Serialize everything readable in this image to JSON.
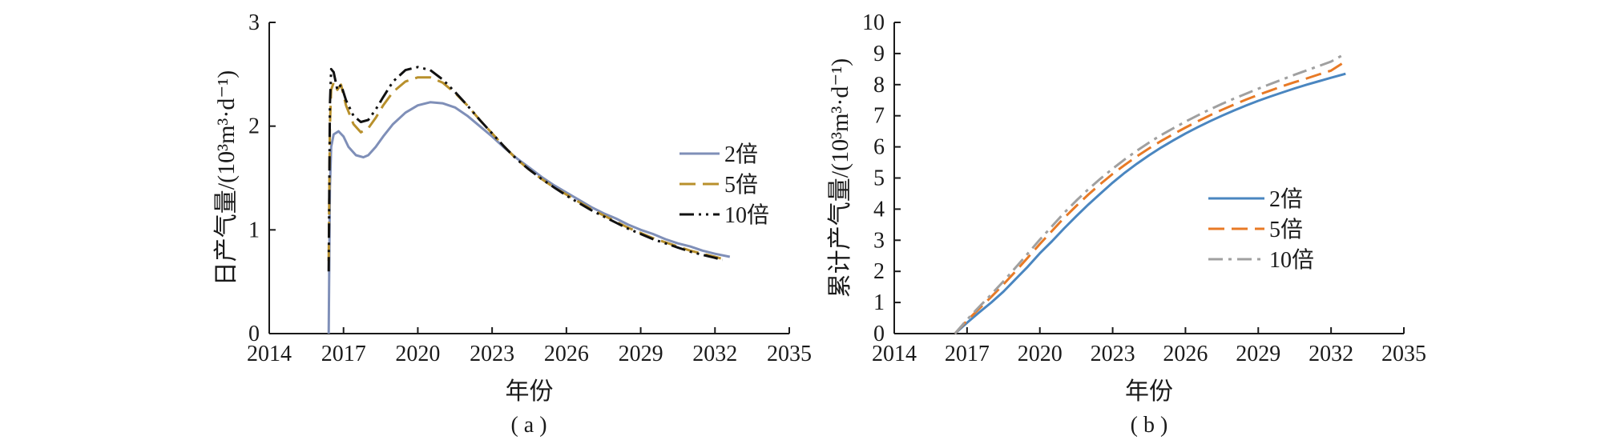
{
  "chart_data": [
    {
      "type": "line",
      "panel_label": "( a )",
      "xlabel": "年份",
      "ylabel": "日产气量/(10³m³·d⁻¹)",
      "xlim": [
        2014,
        2035
      ],
      "ylim": [
        0,
        3
      ],
      "xticks": [
        2014,
        2017,
        2020,
        2023,
        2026,
        2029,
        2032,
        2035
      ],
      "yticks": [
        0,
        1,
        2,
        3
      ],
      "grid": false,
      "legend_position": "right",
      "series": [
        {
          "name": "2倍",
          "color": "#7f8fb8",
          "dash": "solid",
          "points": [
            [
              2016.4,
              0
            ],
            [
              2016.45,
              1.4
            ],
            [
              2016.5,
              1.8
            ],
            [
              2016.6,
              1.92
            ],
            [
              2016.8,
              1.95
            ],
            [
              2017.0,
              1.9
            ],
            [
              2017.2,
              1.8
            ],
            [
              2017.5,
              1.72
            ],
            [
              2017.8,
              1.7
            ],
            [
              2018.0,
              1.72
            ],
            [
              2018.3,
              1.8
            ],
            [
              2018.6,
              1.9
            ],
            [
              2019.0,
              2.02
            ],
            [
              2019.5,
              2.13
            ],
            [
              2020.0,
              2.2
            ],
            [
              2020.5,
              2.23
            ],
            [
              2021.0,
              2.22
            ],
            [
              2021.5,
              2.18
            ],
            [
              2022.0,
              2.1
            ],
            [
              2022.5,
              2.0
            ],
            [
              2023.0,
              1.9
            ],
            [
              2023.5,
              1.79
            ],
            [
              2024.0,
              1.69
            ],
            [
              2024.5,
              1.6
            ],
            [
              2025.0,
              1.51
            ],
            [
              2025.5,
              1.43
            ],
            [
              2026.0,
              1.36
            ],
            [
              2026.5,
              1.29
            ],
            [
              2027.0,
              1.22
            ],
            [
              2027.5,
              1.16
            ],
            [
              2028.0,
              1.11
            ],
            [
              2028.5,
              1.05
            ],
            [
              2029.0,
              1.0
            ],
            [
              2029.5,
              0.96
            ],
            [
              2030.0,
              0.91
            ],
            [
              2030.5,
              0.87
            ],
            [
              2031.0,
              0.84
            ],
            [
              2031.5,
              0.8
            ],
            [
              2032.0,
              0.77
            ],
            [
              2032.6,
              0.74
            ]
          ]
        },
        {
          "name": "5倍",
          "color": "#b8902c",
          "dash": "dashed",
          "points": [
            [
              2016.4,
              0.7
            ],
            [
              2016.45,
              2.0
            ],
            [
              2016.5,
              2.35
            ],
            [
              2016.6,
              2.42
            ],
            [
              2016.75,
              2.35
            ],
            [
              2016.9,
              2.4
            ],
            [
              2017.1,
              2.2
            ],
            [
              2017.4,
              2.02
            ],
            [
              2017.7,
              1.94
            ],
            [
              2018.0,
              1.98
            ],
            [
              2018.3,
              2.08
            ],
            [
              2018.6,
              2.2
            ],
            [
              2019.0,
              2.33
            ],
            [
              2019.5,
              2.43
            ],
            [
              2020.0,
              2.47
            ],
            [
              2020.5,
              2.47
            ],
            [
              2021.0,
              2.42
            ],
            [
              2021.5,
              2.32
            ],
            [
              2022.0,
              2.2
            ],
            [
              2022.5,
              2.06
            ],
            [
              2023.0,
              1.93
            ],
            [
              2023.5,
              1.8
            ],
            [
              2024.0,
              1.68
            ],
            [
              2024.5,
              1.58
            ],
            [
              2025.0,
              1.49
            ],
            [
              2025.5,
              1.41
            ],
            [
              2026.0,
              1.34
            ],
            [
              2026.5,
              1.27
            ],
            [
              2027.0,
              1.2
            ],
            [
              2027.5,
              1.14
            ],
            [
              2028.0,
              1.08
            ],
            [
              2028.5,
              1.02
            ],
            [
              2029.0,
              0.97
            ],
            [
              2029.5,
              0.92
            ],
            [
              2030.0,
              0.88
            ],
            [
              2030.5,
              0.84
            ],
            [
              2031.0,
              0.8
            ],
            [
              2031.5,
              0.77
            ],
            [
              2032.0,
              0.74
            ],
            [
              2032.3,
              0.72
            ]
          ]
        },
        {
          "name": "10倍",
          "color": "#111111",
          "dash": "dashdotdot",
          "points": [
            [
              2016.4,
              0.6
            ],
            [
              2016.45,
              2.2
            ],
            [
              2016.5,
              2.55
            ],
            [
              2016.6,
              2.52
            ],
            [
              2016.75,
              2.35
            ],
            [
              2016.9,
              2.4
            ],
            [
              2017.1,
              2.25
            ],
            [
              2017.4,
              2.1
            ],
            [
              2017.7,
              2.04
            ],
            [
              2018.0,
              2.06
            ],
            [
              2018.3,
              2.16
            ],
            [
              2018.6,
              2.28
            ],
            [
              2019.0,
              2.43
            ],
            [
              2019.5,
              2.54
            ],
            [
              2020.0,
              2.57
            ],
            [
              2020.5,
              2.54
            ],
            [
              2021.0,
              2.45
            ],
            [
              2021.5,
              2.33
            ],
            [
              2022.0,
              2.2
            ],
            [
              2022.5,
              2.06
            ],
            [
              2023.0,
              1.93
            ],
            [
              2023.5,
              1.8
            ],
            [
              2024.0,
              1.68
            ],
            [
              2024.5,
              1.58
            ],
            [
              2025.0,
              1.49
            ],
            [
              2025.5,
              1.41
            ],
            [
              2026.0,
              1.33
            ],
            [
              2026.5,
              1.26
            ],
            [
              2027.0,
              1.19
            ],
            [
              2027.5,
              1.13
            ],
            [
              2028.0,
              1.07
            ],
            [
              2028.5,
              1.01
            ],
            [
              2029.0,
              0.96
            ],
            [
              2029.5,
              0.91
            ],
            [
              2030.0,
              0.87
            ],
            [
              2030.5,
              0.83
            ],
            [
              2031.0,
              0.79
            ],
            [
              2031.5,
              0.76
            ],
            [
              2032.0,
              0.73
            ],
            [
              2032.3,
              0.71
            ]
          ]
        }
      ]
    },
    {
      "type": "line",
      "panel_label": "( b )",
      "xlabel": "年份",
      "ylabel": "累计产气量/(10³m³·d⁻¹)",
      "xlim": [
        2014,
        2035
      ],
      "ylim": [
        0,
        10
      ],
      "xticks": [
        2014,
        2017,
        2020,
        2023,
        2026,
        2029,
        2032,
        2035
      ],
      "yticks": [
        0,
        1,
        2,
        3,
        4,
        5,
        6,
        7,
        8,
        9,
        10
      ],
      "grid": false,
      "legend_position": "center-right",
      "series": [
        {
          "name": "2倍",
          "color": "#4a86c0",
          "dash": "solid",
          "points": [
            [
              2016.5,
              0
            ],
            [
              2017.0,
              0.35
            ],
            [
              2017.5,
              0.68
            ],
            [
              2018.0,
              1.0
            ],
            [
              2018.5,
              1.35
            ],
            [
              2019.0,
              1.75
            ],
            [
              2019.5,
              2.15
            ],
            [
              2020.0,
              2.58
            ],
            [
              2020.5,
              2.97
            ],
            [
              2021.0,
              3.38
            ],
            [
              2021.5,
              3.77
            ],
            [
              2022.0,
              4.15
            ],
            [
              2022.5,
              4.5
            ],
            [
              2023.0,
              4.85
            ],
            [
              2023.5,
              5.17
            ],
            [
              2024.0,
              5.46
            ],
            [
              2024.5,
              5.73
            ],
            [
              2025.0,
              5.98
            ],
            [
              2025.5,
              6.21
            ],
            [
              2026.0,
              6.43
            ],
            [
              2026.5,
              6.63
            ],
            [
              2027.0,
              6.82
            ],
            [
              2027.5,
              7.0
            ],
            [
              2028.0,
              7.17
            ],
            [
              2028.5,
              7.33
            ],
            [
              2029.0,
              7.48
            ],
            [
              2029.5,
              7.62
            ],
            [
              2030.0,
              7.75
            ],
            [
              2030.5,
              7.88
            ],
            [
              2031.0,
              8.0
            ],
            [
              2031.5,
              8.11
            ],
            [
              2032.0,
              8.22
            ],
            [
              2032.6,
              8.35
            ]
          ]
        },
        {
          "name": "5倍",
          "color": "#e87a26",
          "dash": "dashed",
          "points": [
            [
              2016.5,
              0
            ],
            [
              2017.0,
              0.42
            ],
            [
              2017.5,
              0.8
            ],
            [
              2018.0,
              1.18
            ],
            [
              2018.5,
              1.58
            ],
            [
              2019.0,
              2.0
            ],
            [
              2019.5,
              2.44
            ],
            [
              2020.0,
              2.88
            ],
            [
              2020.5,
              3.3
            ],
            [
              2021.0,
              3.72
            ],
            [
              2021.5,
              4.1
            ],
            [
              2022.0,
              4.47
            ],
            [
              2022.5,
              4.81
            ],
            [
              2023.0,
              5.13
            ],
            [
              2023.5,
              5.42
            ],
            [
              2024.0,
              5.7
            ],
            [
              2024.5,
              5.95
            ],
            [
              2025.0,
              6.19
            ],
            [
              2025.5,
              6.41
            ],
            [
              2026.0,
              6.62
            ],
            [
              2026.5,
              6.82
            ],
            [
              2027.0,
              7.01
            ],
            [
              2027.5,
              7.19
            ],
            [
              2028.0,
              7.36
            ],
            [
              2028.5,
              7.52
            ],
            [
              2029.0,
              7.67
            ],
            [
              2029.5,
              7.81
            ],
            [
              2030.0,
              7.95
            ],
            [
              2030.5,
              8.08
            ],
            [
              2031.0,
              8.2
            ],
            [
              2031.5,
              8.33
            ],
            [
              2032.0,
              8.45
            ],
            [
              2032.6,
              8.75
            ]
          ]
        },
        {
          "name": "10倍",
          "color": "#a0a0a0",
          "dash": "dashdot",
          "points": [
            [
              2016.5,
              0
            ],
            [
              2017.0,
              0.45
            ],
            [
              2017.5,
              0.86
            ],
            [
              2018.0,
              1.26
            ],
            [
              2018.5,
              1.68
            ],
            [
              2019.0,
              2.12
            ],
            [
              2019.5,
              2.57
            ],
            [
              2020.0,
              3.02
            ],
            [
              2020.5,
              3.45
            ],
            [
              2021.0,
              3.88
            ],
            [
              2021.5,
              4.27
            ],
            [
              2022.0,
              4.64
            ],
            [
              2022.5,
              4.98
            ],
            [
              2023.0,
              5.3
            ],
            [
              2023.5,
              5.6
            ],
            [
              2024.0,
              5.88
            ],
            [
              2024.5,
              6.14
            ],
            [
              2025.0,
              6.38
            ],
            [
              2025.5,
              6.6
            ],
            [
              2026.0,
              6.81
            ],
            [
              2026.5,
              7.01
            ],
            [
              2027.0,
              7.2
            ],
            [
              2027.5,
              7.38
            ],
            [
              2028.0,
              7.55
            ],
            [
              2028.5,
              7.71
            ],
            [
              2029.0,
              7.87
            ],
            [
              2029.5,
              8.02
            ],
            [
              2030.0,
              8.17
            ],
            [
              2030.5,
              8.32
            ],
            [
              2031.0,
              8.46
            ],
            [
              2031.5,
              8.6
            ],
            [
              2032.0,
              8.74
            ],
            [
              2032.6,
              9.0
            ]
          ]
        }
      ]
    }
  ]
}
